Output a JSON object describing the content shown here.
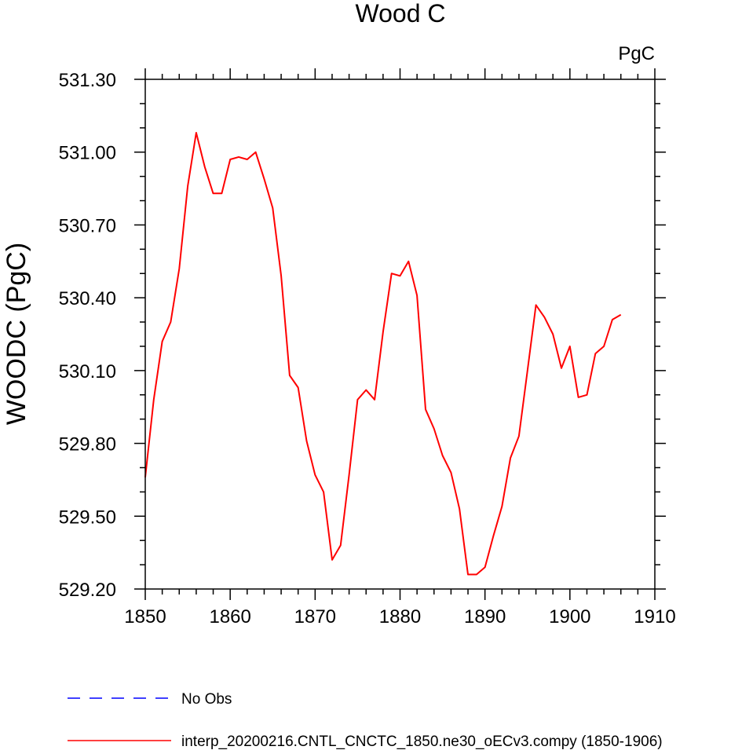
{
  "chart_data": {
    "type": "line",
    "title": "Wood C",
    "units_label": "PgC",
    "xlabel": "",
    "ylabel": "WOODC  (PgC)",
    "xlim": [
      1850,
      1910
    ],
    "ylim": [
      529.2,
      531.3
    ],
    "x_ticks": [
      "1850",
      "1860",
      "1870",
      "1880",
      "1890",
      "1900",
      "1910"
    ],
    "y_ticks": [
      "529.20",
      "529.50",
      "529.80",
      "530.10",
      "530.40",
      "530.70",
      "531.00",
      "531.30"
    ],
    "grid": false,
    "legend_position": "bottom",
    "series": [
      {
        "name": "interp_20200216.CNTL_CNCTC_1850.ne30_oECv3.compy (1850-1906)",
        "color": "#ff0000",
        "style": "solid",
        "x": [
          1850,
          1851,
          1852,
          1853,
          1854,
          1855,
          1856,
          1857,
          1858,
          1859,
          1860,
          1861,
          1862,
          1863,
          1864,
          1865,
          1866,
          1867,
          1868,
          1869,
          1870,
          1871,
          1872,
          1873,
          1874,
          1875,
          1876,
          1877,
          1878,
          1879,
          1880,
          1881,
          1882,
          1883,
          1884,
          1885,
          1886,
          1887,
          1888,
          1889,
          1890,
          1891,
          1892,
          1893,
          1894,
          1895,
          1896,
          1897,
          1898,
          1899,
          1900,
          1901,
          1902,
          1903,
          1904,
          1905,
          1906
        ],
        "y": [
          529.66,
          529.98,
          530.22,
          530.3,
          530.52,
          530.86,
          531.08,
          530.94,
          530.83,
          530.83,
          530.97,
          530.98,
          530.97,
          531.0,
          530.89,
          530.77,
          530.49,
          530.08,
          530.03,
          529.81,
          529.67,
          529.6,
          529.32,
          529.38,
          529.67,
          529.98,
          530.02,
          529.98,
          530.26,
          530.5,
          530.49,
          530.55,
          530.41,
          529.94,
          529.86,
          529.75,
          529.68,
          529.53,
          529.26,
          529.26,
          529.29,
          529.42,
          529.54,
          529.74,
          529.83,
          530.1,
          530.37,
          530.32,
          530.25,
          530.11,
          530.2,
          529.99,
          530.0,
          530.17,
          530.2,
          530.31,
          530.33
        ]
      }
    ]
  },
  "legend": [
    {
      "label": "No Obs",
      "color": "#0000ff",
      "style": "dashed"
    },
    {
      "label": "interp_20200216.CNTL_CNCTC_1850.ne30_oECv3.compy (1850-1906)",
      "color": "#ff0000",
      "style": "solid"
    }
  ]
}
